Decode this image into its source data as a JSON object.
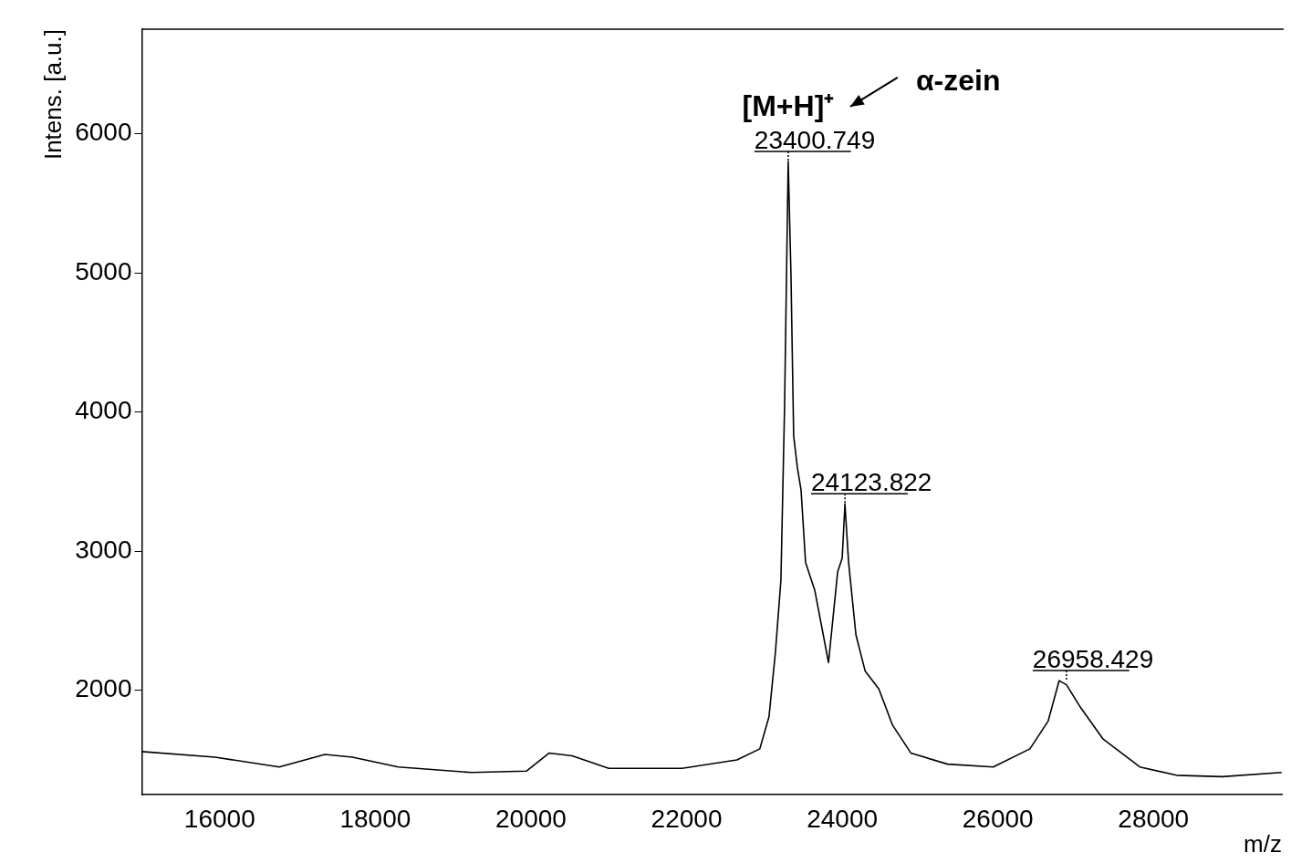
{
  "chart_data": {
    "type": "line",
    "xlabel": "m/z",
    "ylabel": "Intens. [a.u.]",
    "xlim": [
      15000,
      29650
    ],
    "ylim": [
      1250,
      6750
    ],
    "xticks": [
      16000,
      18000,
      20000,
      22000,
      24000,
      26000,
      28000
    ],
    "yticks": [
      2000,
      3000,
      4000,
      5000,
      6000
    ],
    "grid": false,
    "legend": false,
    "marker": "none",
    "line_style": "solid",
    "series": [
      {
        "color": "#000000",
        "x": [
          15000,
          15941,
          16765,
          17353,
          17706,
          18294,
          19235,
          19941,
          20235,
          20529,
          21000,
          21941,
          22647,
          22941,
          23059,
          23141,
          23212,
          23259,
          23306,
          23341,
          23376,
          23424,
          23471,
          23529,
          23647,
          23824,
          23941,
          24000,
          24035,
          24082,
          24176,
          24294,
          24471,
          24647,
          24882,
          25353,
          25941,
          26412,
          26647,
          26788,
          26882,
          27059,
          27353,
          27824,
          28294,
          28882,
          29647
        ],
        "values": [
          1560,
          1520,
          1450,
          1540,
          1520,
          1450,
          1410,
          1420,
          1550,
          1530,
          1440,
          1440,
          1500,
          1580,
          1810,
          2270,
          2790,
          4030,
          5800,
          5000,
          3830,
          3600,
          3440,
          2920,
          2720,
          2200,
          2850,
          2950,
          3340,
          2920,
          2400,
          2140,
          2010,
          1750,
          1550,
          1470,
          1450,
          1580,
          1780,
          2070,
          2040,
          1880,
          1650,
          1450,
          1390,
          1380,
          1410
        ]
      }
    ],
    "annotations": [
      {
        "text": "23400.749",
        "x": 23306,
        "y": 5800
      },
      {
        "text": "24123.822",
        "x": 24035,
        "y": 3340
      },
      {
        "text": "26958.429",
        "x": 26882,
        "y": 2070
      },
      "[M+H]⁺",
      "α-zein"
    ]
  }
}
